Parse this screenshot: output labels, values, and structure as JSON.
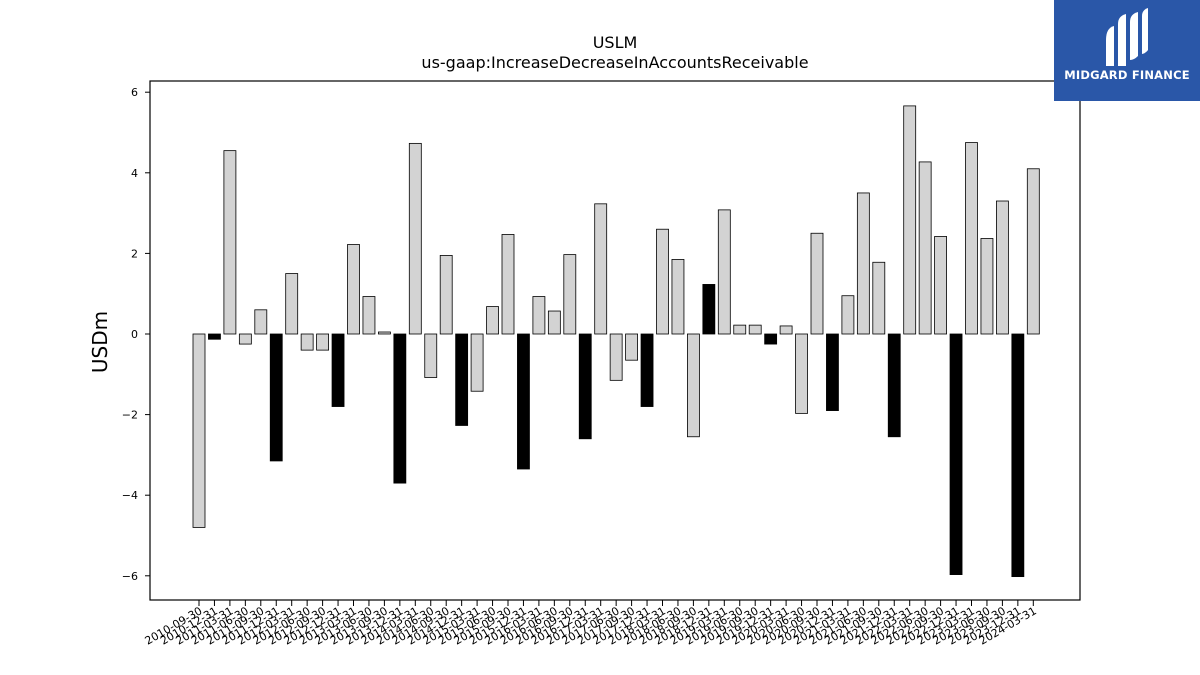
{
  "brand": {
    "name": "MIDGARD FINANCE",
    "bg_color": "#2a57a8",
    "icon": "midgard-logo-icon"
  },
  "chart_data": {
    "type": "bar",
    "title": "USLM",
    "subtitle": "us-gaap:IncreaseDecreaseInAccountsReceivable",
    "ylabel": "USDm",
    "xlabel": "",
    "ylim": [
      -6.5,
      6.3
    ],
    "yticks": [
      -6,
      -4,
      -2,
      0,
      2,
      4,
      6
    ],
    "grid": false,
    "colors": {
      "quarterly": "#d3d3d3",
      "q4_annual": "#000000",
      "edge": "#000000"
    },
    "categories": [
      "2010-09-30",
      "2010-12-31",
      "2011-03-31",
      "2011-06-30",
      "2011-09-30",
      "2011-12-31",
      "2012-03-31",
      "2012-06-30",
      "2012-09-30",
      "2012-12-31",
      "2013-03-31",
      "2013-06-30",
      "2013-09-30",
      "2013-12-31",
      "2014-03-31",
      "2014-06-30",
      "2014-09-30",
      "2014-12-31",
      "2015-03-31",
      "2015-06-30",
      "2015-09-30",
      "2015-12-31",
      "2016-03-31",
      "2016-06-30",
      "2016-09-30",
      "2016-12-31",
      "2017-03-31",
      "2017-06-30",
      "2017-09-30",
      "2017-12-31",
      "2018-03-31",
      "2018-06-30",
      "2018-09-30",
      "2018-12-31",
      "2019-03-31",
      "2019-06-30",
      "2019-09-30",
      "2019-12-31",
      "2020-03-31",
      "2020-06-30",
      "2020-09-30",
      "2020-12-31",
      "2021-03-31",
      "2021-06-30",
      "2021-09-30",
      "2021-12-31",
      "2022-03-31",
      "2022-06-30",
      "2022-09-30",
      "2022-12-31",
      "2023-03-31",
      "2023-06-30",
      "2023-09-30",
      "2023-12-31",
      "2024-03-31"
    ],
    "values": [
      -4.8,
      -0.13,
      4.55,
      -0.25,
      0.6,
      -3.15,
      1.5,
      -0.4,
      -0.4,
      -1.8,
      2.22,
      0.93,
      0.05,
      -3.7,
      4.73,
      -1.08,
      1.95,
      -2.27,
      -1.42,
      0.68,
      2.47,
      -3.35,
      0.93,
      0.57,
      1.97,
      -2.6,
      3.23,
      -1.15,
      -0.65,
      -1.8,
      2.6,
      1.85,
      -2.55,
      1.23,
      3.08,
      0.22,
      0.22,
      -0.25,
      0.2,
      -1.97,
      2.5,
      -1.9,
      0.95,
      3.5,
      1.78,
      -2.55,
      5.66,
      4.27,
      2.42,
      -5.97,
      4.75,
      2.37,
      3.3,
      -6.02,
      4.1
    ],
    "dark": [
      false,
      true,
      false,
      false,
      false,
      true,
      false,
      false,
      false,
      true,
      false,
      false,
      false,
      true,
      false,
      false,
      false,
      true,
      false,
      false,
      false,
      true,
      false,
      false,
      false,
      true,
      false,
      false,
      false,
      true,
      false,
      false,
      false,
      true,
      false,
      false,
      false,
      true,
      false,
      false,
      false,
      true,
      false,
      false,
      false,
      true,
      false,
      false,
      false,
      true,
      false,
      false,
      false,
      true,
      false
    ]
  }
}
